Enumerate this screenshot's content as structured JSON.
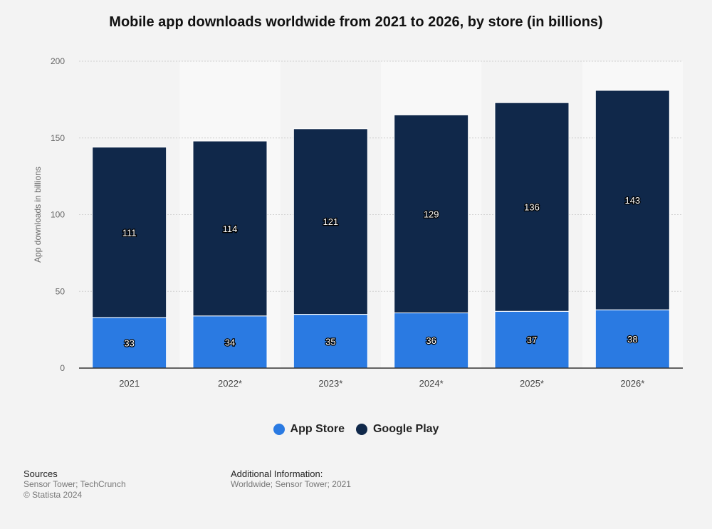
{
  "colors": {
    "app_store": "#2a7ae2",
    "google_play": "#10284a",
    "grid": "#cfcfcf",
    "band": "#f8f8f8"
  },
  "chart_data": {
    "type": "bar",
    "stacked": true,
    "title": "Mobile app downloads worldwide from 2021 to 2026, by store (in billions)",
    "ylabel": "App downloads in billions",
    "xlabel": "",
    "ylim": [
      0,
      200
    ],
    "yticks": [
      0,
      50,
      100,
      150,
      200
    ],
    "grid": true,
    "legend_position": "bottom",
    "categories": [
      "2021",
      "2022*",
      "2023*",
      "2024*",
      "2025*",
      "2026*"
    ],
    "series": [
      {
        "name": "App Store",
        "values": [
          33,
          34,
          35,
          36,
          37,
          38
        ]
      },
      {
        "name": "Google Play",
        "values": [
          111,
          114,
          121,
          129,
          136,
          143
        ]
      }
    ]
  },
  "footer": {
    "sources_heading": "Sources",
    "sources_text": "Sensor Tower; TechCrunch",
    "copyright": "© Statista 2024",
    "additional_heading": "Additional Information:",
    "additional_text": "Worldwide; Sensor Tower; 2021"
  }
}
